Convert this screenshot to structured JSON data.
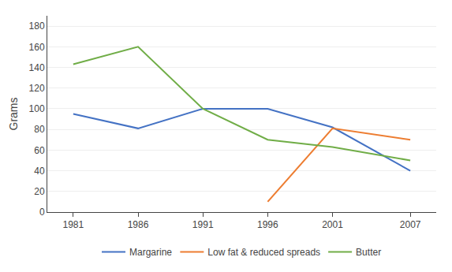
{
  "chart_data": {
    "type": "line",
    "ylabel": "Grams",
    "x": [
      1981,
      1986,
      1991,
      1996,
      2001,
      2007
    ],
    "series": [
      {
        "name": "Margarine",
        "color": "#4472C4",
        "values": [
          95,
          81,
          100,
          100,
          82,
          40
        ]
      },
      {
        "name": "Low fat & reduced spreads",
        "color": "#ED7D31",
        "values": [
          null,
          null,
          null,
          10,
          81,
          70
        ]
      },
      {
        "name": "Butter",
        "color": "#70AD47",
        "values": [
          143,
          160,
          100,
          70,
          63,
          50
        ]
      }
    ],
    "xlim": [
      1979,
      2009
    ],
    "xticks": [
      1981,
      1986,
      1991,
      1996,
      2001,
      2007
    ],
    "ylim": [
      0,
      190
    ],
    "yticks": [
      0,
      20,
      40,
      60,
      80,
      100,
      120,
      140,
      160,
      180
    ],
    "grid": true,
    "legend": "bottom"
  }
}
